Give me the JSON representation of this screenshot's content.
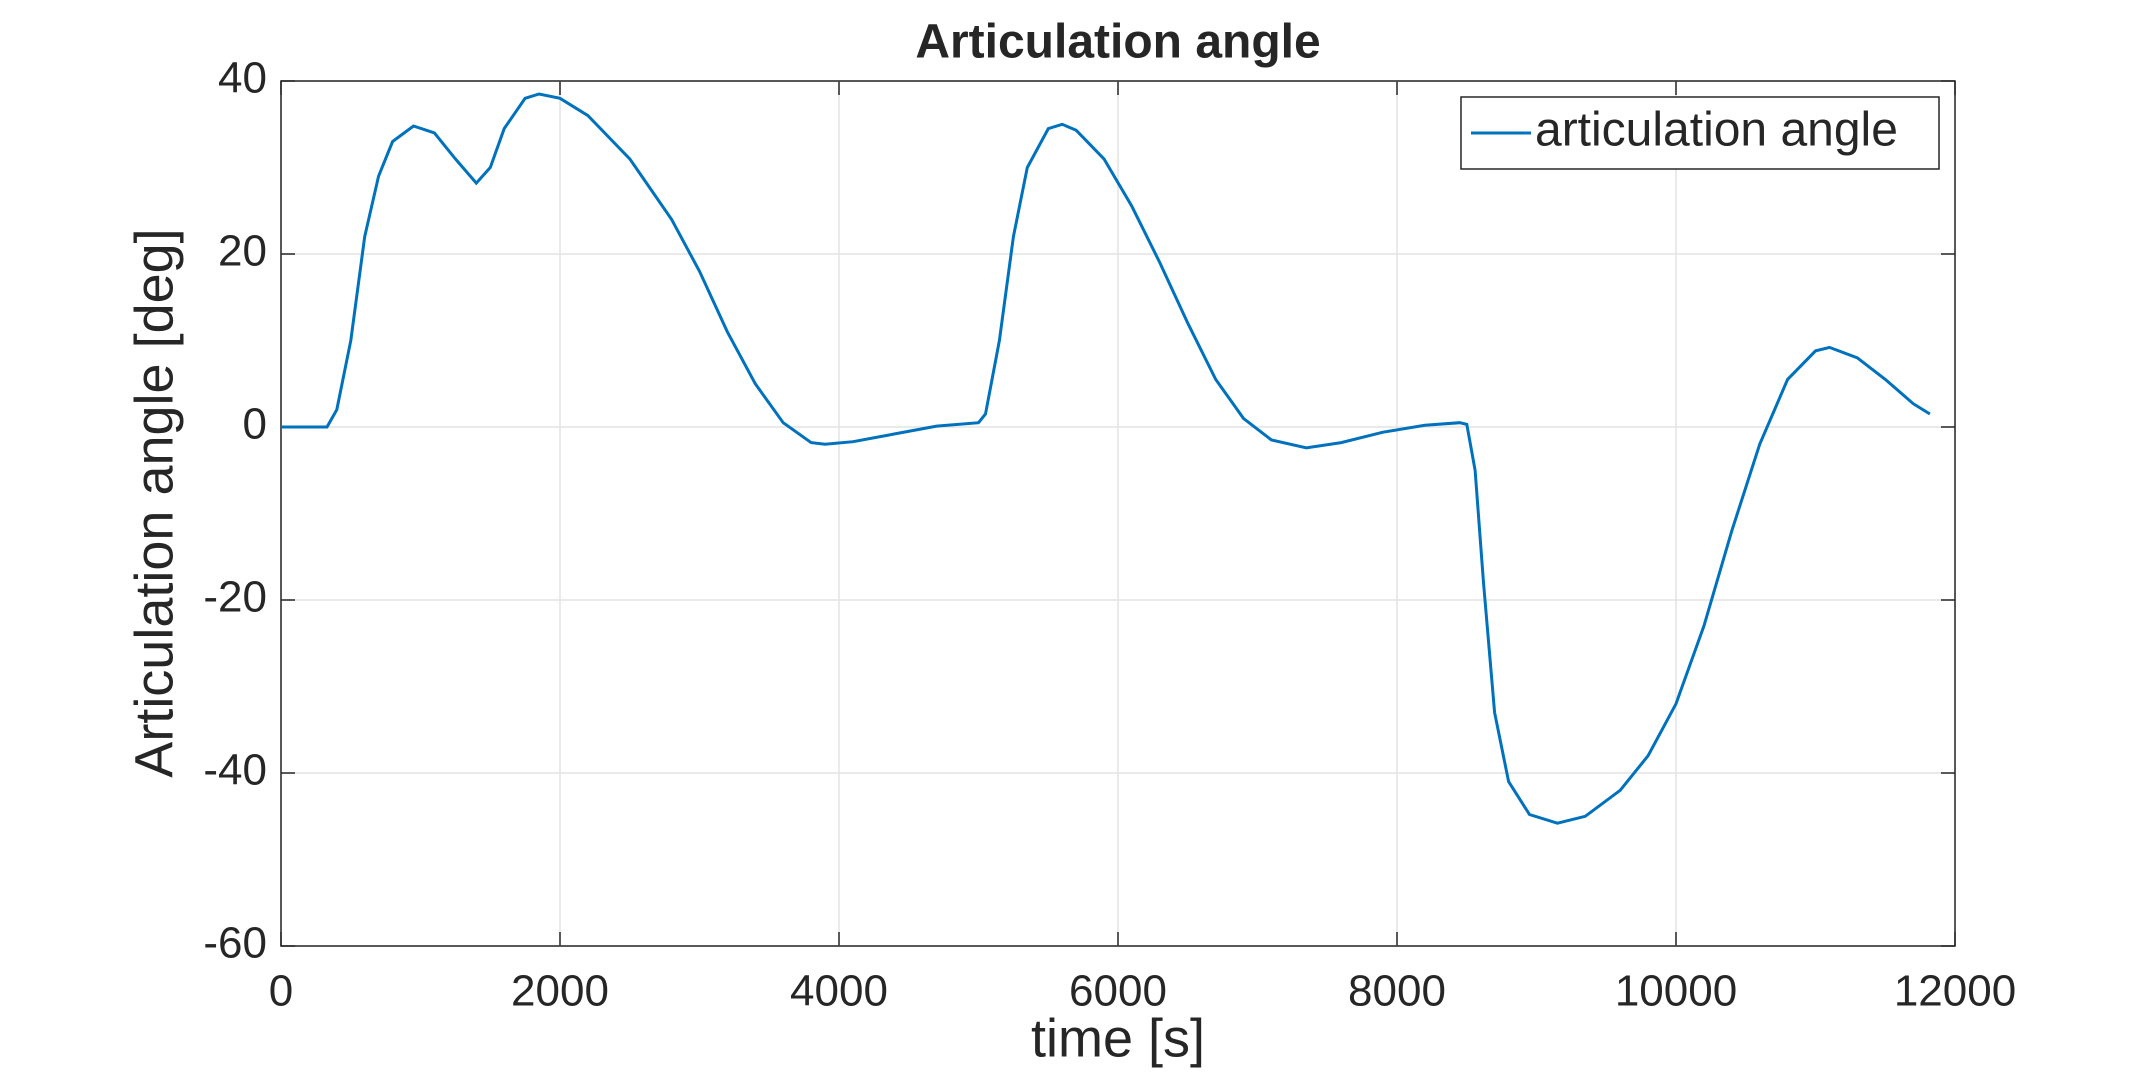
{
  "chart_data": {
    "type": "line",
    "title": "Articulation angle",
    "x_label": "time [s]",
    "y_label": "Articulation angle [deg]",
    "xlim": [
      0,
      12000
    ],
    "xticks": [
      0,
      2000,
      4000,
      6000,
      8000,
      10000,
      12000
    ],
    "ylim": [
      -60,
      40
    ],
    "yticks": [
      -60,
      -40,
      -20,
      0,
      20,
      40
    ],
    "grid": true,
    "legend": "upper right",
    "x": [
      0,
      330,
      400,
      500,
      600,
      700,
      800,
      950,
      1100,
      1250,
      1400,
      1500,
      1600,
      1750,
      1850,
      2000,
      2200,
      2500,
      2800,
      3000,
      3200,
      3400,
      3600,
      3800,
      3900,
      4100,
      4400,
      4700,
      5000,
      5050,
      5150,
      5250,
      5350,
      5500,
      5600,
      5700,
      5900,
      6100,
      6300,
      6500,
      6700,
      6900,
      7100,
      7350,
      7600,
      7900,
      8200,
      8450,
      8500,
      8560,
      8620,
      8700,
      8800,
      8950,
      9150,
      9350,
      9600,
      9800,
      10000,
      10200,
      10400,
      10600,
      10800,
      11000,
      11100,
      11300,
      11500,
      11700,
      11820
    ],
    "series": [
      {
        "name": "articulation angle",
        "color": "#0072bd",
        "values": [
          0,
          0,
          2,
          10,
          22,
          29,
          33,
          34.8,
          34,
          31,
          28.2,
          30,
          34.5,
          38,
          38.5,
          38,
          36,
          31,
          24,
          18,
          11,
          5,
          0.5,
          -1.8,
          -2,
          -1.7,
          -0.8,
          0.1,
          0.5,
          1.5,
          10,
          22,
          30,
          34.5,
          35,
          34.3,
          31,
          25.5,
          19,
          12,
          5.5,
          1,
          -1.5,
          -2.4,
          -1.8,
          -0.6,
          0.2,
          0.5,
          0.3,
          -5,
          -18,
          -33,
          -41,
          -44.8,
          -45.8,
          -45,
          -42,
          -38,
          -32,
          -23,
          -12,
          -2,
          5.5,
          8.8,
          9.2,
          8,
          5.5,
          2.7,
          1.5
        ]
      }
    ]
  }
}
